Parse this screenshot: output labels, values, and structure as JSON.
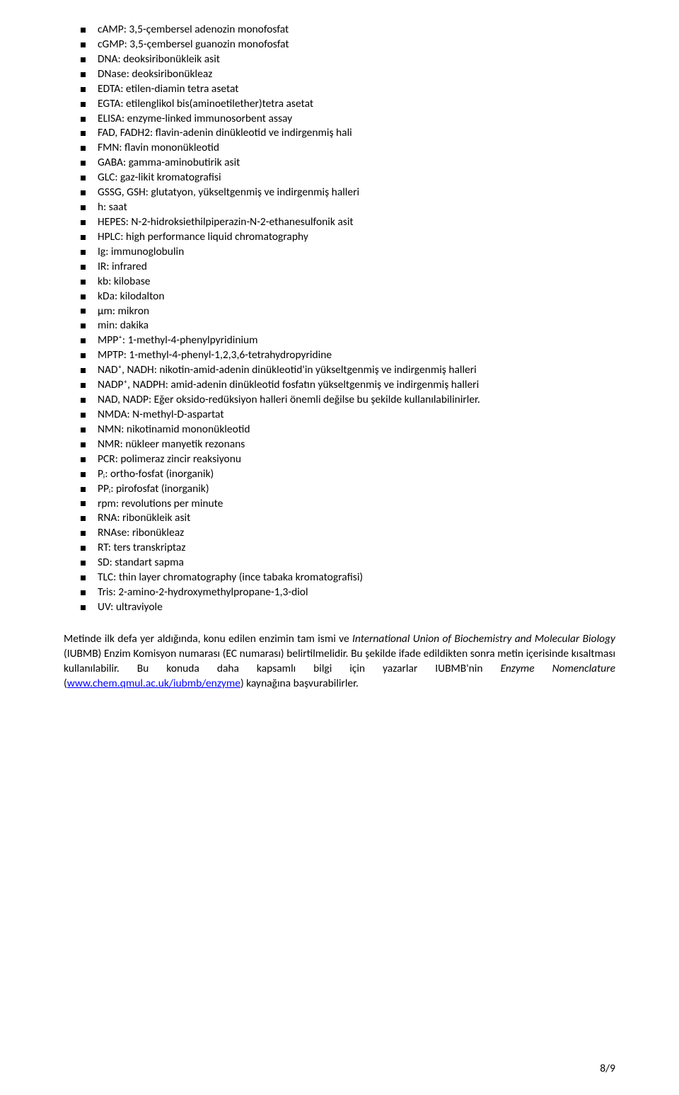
{
  "abbrev_list": [
    "cAMP: 3,5-çembersel adenozin monofosfat",
    "cGMP: 3,5-çembersel guanozin monofosfat",
    "DNA: deoksiribonükleik asit",
    "DNase: deoksiribonükleaz",
    "EDTA: etilen-diamin tetra asetat",
    "EGTA: etilenglikol bis(aminoetilether)tetra asetat",
    "ELISA: enzyme-linked immunosorbent assay",
    "FAD, FADH2: flavin-adenin dinükleotid ve indirgenmiş hali",
    "FMN: flavin mononükleotid",
    "GABA: gamma-aminobutirik asit",
    "GLC: gaz-likit kromatografisi",
    "GSSG, GSH: glutatyon, yükseltgenmiş ve indirgenmiş halleri",
    "h: saat",
    "HEPES: N-2-hidroksiethilpiperazin-N-2-ethanesulfonik asit",
    "HPLC: high performance liquid chromatography",
    "Ig: immunoglobulin",
    "IR: infrared",
    "kb: kilobase",
    "kDa: kilodalton",
    "μm: mikron",
    "min: dakika",
    "MPP⁺: 1-methyl-4-phenylpyridinium",
    "MPTP: 1-methyl-4-phenyl-1,2,3,6-tetrahydropyridine",
    "NAD⁺, NADH: nikotin-amid-adenin dinükleotid'in yükseltgenmiş ve indirgenmiş halleri",
    "NADP⁺, NADPH: amid-adenin dinükleotid fosfatın yükseltgenmiş ve indirgenmiş halleri",
    "NAD, NADP: Eğer oksido-redüksiyon halleri önemli değilse bu şekilde kullanılabilinirler.",
    "NMDA: N-methyl-D-aspartat",
    "NMN: nikotinamid mononükleotid",
    "NMR: nükleer manyetik rezonans",
    "PCR: polimeraz zincir reaksiyonu",
    "Pᵢ: ortho-fosfat (inorganik)",
    "PPᵢ: pirofosfat (inorganik)",
    "rpm: revolutions per minute",
    "RNA: ribonükleik asit",
    "RNAse: ribonükleaz",
    "RT: ters transkriptaz",
    "SD: standart sapma",
    "TLC: thin layer chromatography (ince tabaka kromatografisi)",
    "Tris: 2-amino-2-hydroxymethylpropane-1,3-diol",
    "UV: ultraviyole"
  ],
  "paragraph": {
    "t1": "Metinde ilk defa yer aldığında, konu edilen enzimin tam ismi ve ",
    "t2": "International Union of Biochemistry and Molecular Biology",
    "t3": " (IUBMB) Enzim Komisyon numarası (EC numarası) belirtilmelidir. Bu şekilde ifade edildikten sonra metin içerisinde kısaltması kullanılabilir. Bu konuda daha kapsamlı bilgi için yazarlar IUBMB'nin ",
    "t4": "Enzyme Nomenclature",
    "t5": " (",
    "link": "www.chem.qmul.ac.uk/iubmb/enzyme",
    "t6": ") kaynağına başvurabilirler."
  },
  "page_number": "8/9",
  "link_color": "#0000ff",
  "text_color": "#000000",
  "background_color": "#ffffff"
}
